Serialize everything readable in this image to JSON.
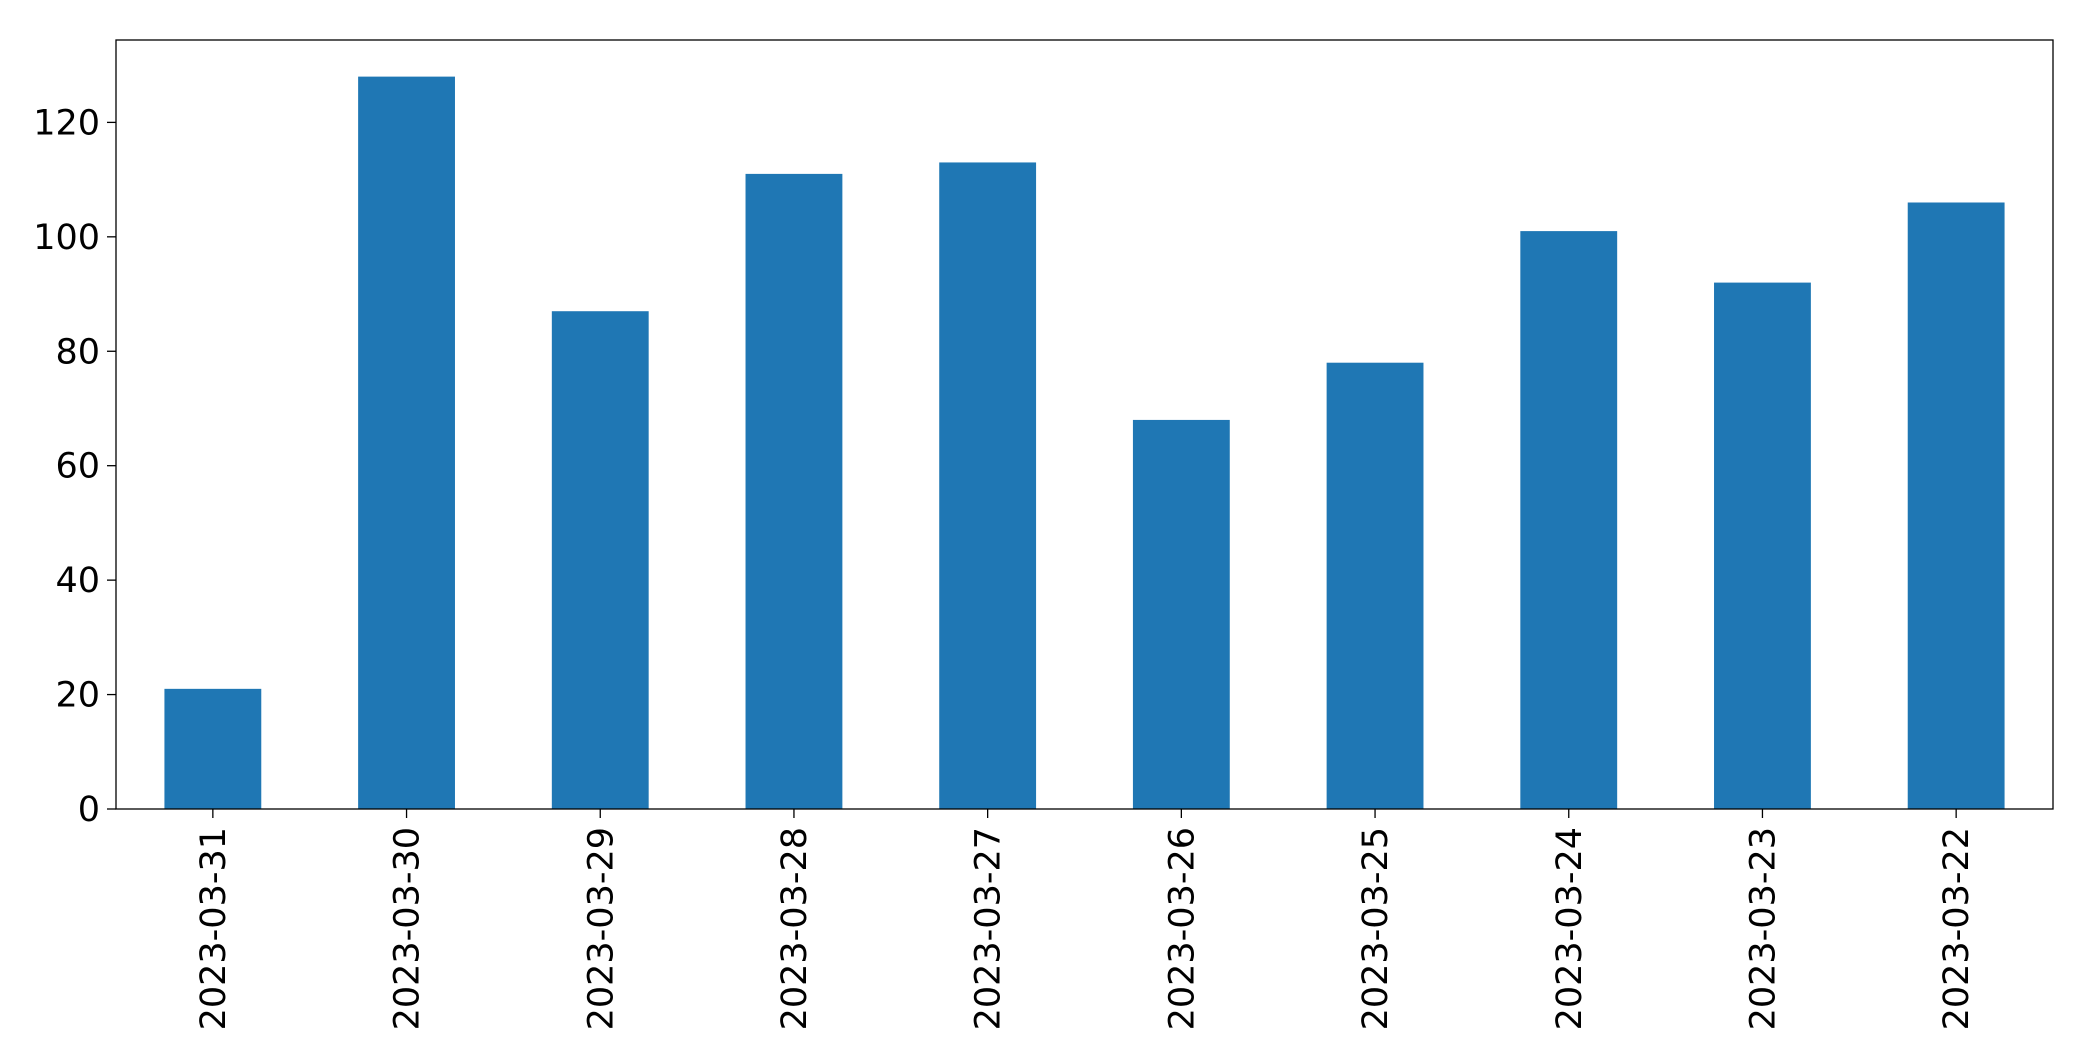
{
  "chart_data": {
    "type": "bar",
    "categories": [
      "2023-03-31",
      "2023-03-30",
      "2023-03-29",
      "2023-03-28",
      "2023-03-27",
      "2023-03-26",
      "2023-03-25",
      "2023-03-24",
      "2023-03-23",
      "2023-03-22"
    ],
    "values": [
      21,
      128,
      87,
      111,
      113,
      68,
      78,
      101,
      92,
      106
    ],
    "color": "#1f77b4",
    "ylim": [
      0,
      134.4
    ],
    "yticks": [
      0,
      20,
      40,
      60,
      80,
      100,
      120
    ],
    "grid": false
  }
}
